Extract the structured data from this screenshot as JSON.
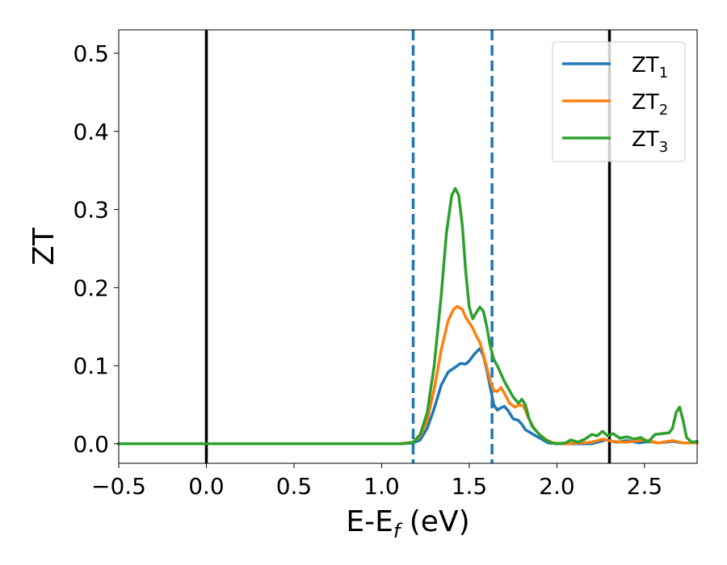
{
  "chart_data": {
    "type": "line",
    "title": "",
    "xlabel": "E-E",
    "xlabel_sub": "f",
    "xlabel_unit": " (eV)",
    "ylabel": "ZT",
    "xlim": [
      -0.5,
      2.8
    ],
    "ylim": [
      -0.025,
      0.53
    ],
    "xticks": [
      -0.5,
      0.0,
      0.5,
      1.0,
      1.5,
      2.0,
      2.5
    ],
    "xtick_labels": [
      "−0.5",
      "0.0",
      "0.5",
      "1.0",
      "1.5",
      "2.0",
      "2.5"
    ],
    "yticks": [
      0.0,
      0.1,
      0.2,
      0.3,
      0.4,
      0.5
    ],
    "ytick_labels": [
      "0.0",
      "0.1",
      "0.2",
      "0.3",
      "0.4",
      "0.5"
    ],
    "grid": false,
    "legend_position": "top-right",
    "reference_lines": [
      {
        "x": 0.0,
        "style": "solid",
        "color": "#000000"
      },
      {
        "x": 2.3,
        "style": "solid",
        "color": "#000000"
      },
      {
        "x": 1.18,
        "style": "dashed",
        "color": "#1f77b4"
      },
      {
        "x": 1.63,
        "style": "dashed",
        "color": "#1f77b4"
      }
    ],
    "series": [
      {
        "name": "ZT",
        "name_sub": "1",
        "color": "#1f77b4",
        "points": [
          [
            -0.5,
            0
          ],
          [
            1.1,
            0
          ],
          [
            1.18,
            0.001
          ],
          [
            1.22,
            0.005
          ],
          [
            1.26,
            0.02
          ],
          [
            1.3,
            0.045
          ],
          [
            1.34,
            0.075
          ],
          [
            1.38,
            0.092
          ],
          [
            1.42,
            0.098
          ],
          [
            1.45,
            0.103
          ],
          [
            1.48,
            0.102
          ],
          [
            1.5,
            0.106
          ],
          [
            1.53,
            0.115
          ],
          [
            1.56,
            0.122
          ],
          [
            1.58,
            0.113
          ],
          [
            1.6,
            0.095
          ],
          [
            1.62,
            0.072
          ],
          [
            1.64,
            0.05
          ],
          [
            1.66,
            0.043
          ],
          [
            1.68,
            0.046
          ],
          [
            1.7,
            0.048
          ],
          [
            1.72,
            0.043
          ],
          [
            1.75,
            0.032
          ],
          [
            1.78,
            0.03
          ],
          [
            1.8,
            0.025
          ],
          [
            1.82,
            0.018
          ],
          [
            1.85,
            0.014
          ],
          [
            1.88,
            0.01
          ],
          [
            1.92,
            0.005
          ],
          [
            1.95,
            0.001
          ],
          [
            2.0,
            0
          ],
          [
            2.2,
            0
          ],
          [
            2.28,
            0.005
          ],
          [
            2.34,
            0.002
          ],
          [
            2.4,
            0.004
          ],
          [
            2.47,
            0.001
          ],
          [
            2.52,
            0.003
          ],
          [
            2.58,
            0.001
          ],
          [
            2.66,
            0.003
          ],
          [
            2.72,
            0.001
          ],
          [
            2.8,
            0.001
          ]
        ]
      },
      {
        "name": "ZT",
        "name_sub": "2",
        "color": "#ff7f0e",
        "points": [
          [
            -0.5,
            0
          ],
          [
            1.1,
            0
          ],
          [
            1.18,
            0.002
          ],
          [
            1.22,
            0.01
          ],
          [
            1.26,
            0.03
          ],
          [
            1.3,
            0.07
          ],
          [
            1.34,
            0.12
          ],
          [
            1.38,
            0.158
          ],
          [
            1.41,
            0.172
          ],
          [
            1.43,
            0.176
          ],
          [
            1.46,
            0.172
          ],
          [
            1.48,
            0.162
          ],
          [
            1.5,
            0.155
          ],
          [
            1.52,
            0.148
          ],
          [
            1.54,
            0.138
          ],
          [
            1.56,
            0.13
          ],
          [
            1.58,
            0.115
          ],
          [
            1.6,
            0.098
          ],
          [
            1.62,
            0.08
          ],
          [
            1.64,
            0.068
          ],
          [
            1.66,
            0.067
          ],
          [
            1.68,
            0.072
          ],
          [
            1.7,
            0.065
          ],
          [
            1.73,
            0.052
          ],
          [
            1.76,
            0.047
          ],
          [
            1.79,
            0.05
          ],
          [
            1.81,
            0.048
          ],
          [
            1.84,
            0.032
          ],
          [
            1.87,
            0.02
          ],
          [
            1.9,
            0.012
          ],
          [
            1.94,
            0.005
          ],
          [
            1.98,
            0.001
          ],
          [
            2.05,
            0
          ],
          [
            2.2,
            0.002
          ],
          [
            2.26,
            0.006
          ],
          [
            2.32,
            0.003
          ],
          [
            2.4,
            0.002
          ],
          [
            2.5,
            0.005
          ],
          [
            2.58,
            0.001
          ],
          [
            2.66,
            0.004
          ],
          [
            2.72,
            0.001
          ],
          [
            2.8,
            0.001
          ]
        ]
      },
      {
        "name": "ZT",
        "name_sub": "3",
        "color": "#2ca02c",
        "points": [
          [
            -0.5,
            0
          ],
          [
            1.12,
            0
          ],
          [
            1.18,
            0.002
          ],
          [
            1.22,
            0.012
          ],
          [
            1.26,
            0.04
          ],
          [
            1.3,
            0.1
          ],
          [
            1.34,
            0.19
          ],
          [
            1.37,
            0.27
          ],
          [
            1.4,
            0.318
          ],
          [
            1.42,
            0.327
          ],
          [
            1.44,
            0.318
          ],
          [
            1.46,
            0.28
          ],
          [
            1.48,
            0.22
          ],
          [
            1.5,
            0.175
          ],
          [
            1.52,
            0.16
          ],
          [
            1.54,
            0.168
          ],
          [
            1.56,
            0.175
          ],
          [
            1.58,
            0.17
          ],
          [
            1.6,
            0.15
          ],
          [
            1.62,
            0.125
          ],
          [
            1.64,
            0.108
          ],
          [
            1.66,
            0.1
          ],
          [
            1.68,
            0.09
          ],
          [
            1.7,
            0.08
          ],
          [
            1.72,
            0.072
          ],
          [
            1.75,
            0.06
          ],
          [
            1.78,
            0.052
          ],
          [
            1.8,
            0.057
          ],
          [
            1.82,
            0.05
          ],
          [
            1.84,
            0.033
          ],
          [
            1.86,
            0.022
          ],
          [
            1.88,
            0.017
          ],
          [
            1.9,
            0.012
          ],
          [
            1.93,
            0.006
          ],
          [
            1.96,
            0.002
          ],
          [
            2.0,
            0
          ],
          [
            2.05,
            0.001
          ],
          [
            2.08,
            0.005
          ],
          [
            2.12,
            0.002
          ],
          [
            2.16,
            0.006
          ],
          [
            2.2,
            0.012
          ],
          [
            2.23,
            0.01
          ],
          [
            2.26,
            0.016
          ],
          [
            2.29,
            0.01
          ],
          [
            2.32,
            0.013
          ],
          [
            2.36,
            0.007
          ],
          [
            2.4,
            0.009
          ],
          [
            2.44,
            0.006
          ],
          [
            2.48,
            0.008
          ],
          [
            2.52,
            0.002
          ],
          [
            2.56,
            0.012
          ],
          [
            2.6,
            0.013
          ],
          [
            2.64,
            0.014
          ],
          [
            2.66,
            0.02
          ],
          [
            2.68,
            0.04
          ],
          [
            2.7,
            0.047
          ],
          [
            2.72,
            0.03
          ],
          [
            2.74,
            0.008
          ],
          [
            2.77,
            0.002
          ],
          [
            2.8,
            0.003
          ]
        ]
      }
    ]
  }
}
